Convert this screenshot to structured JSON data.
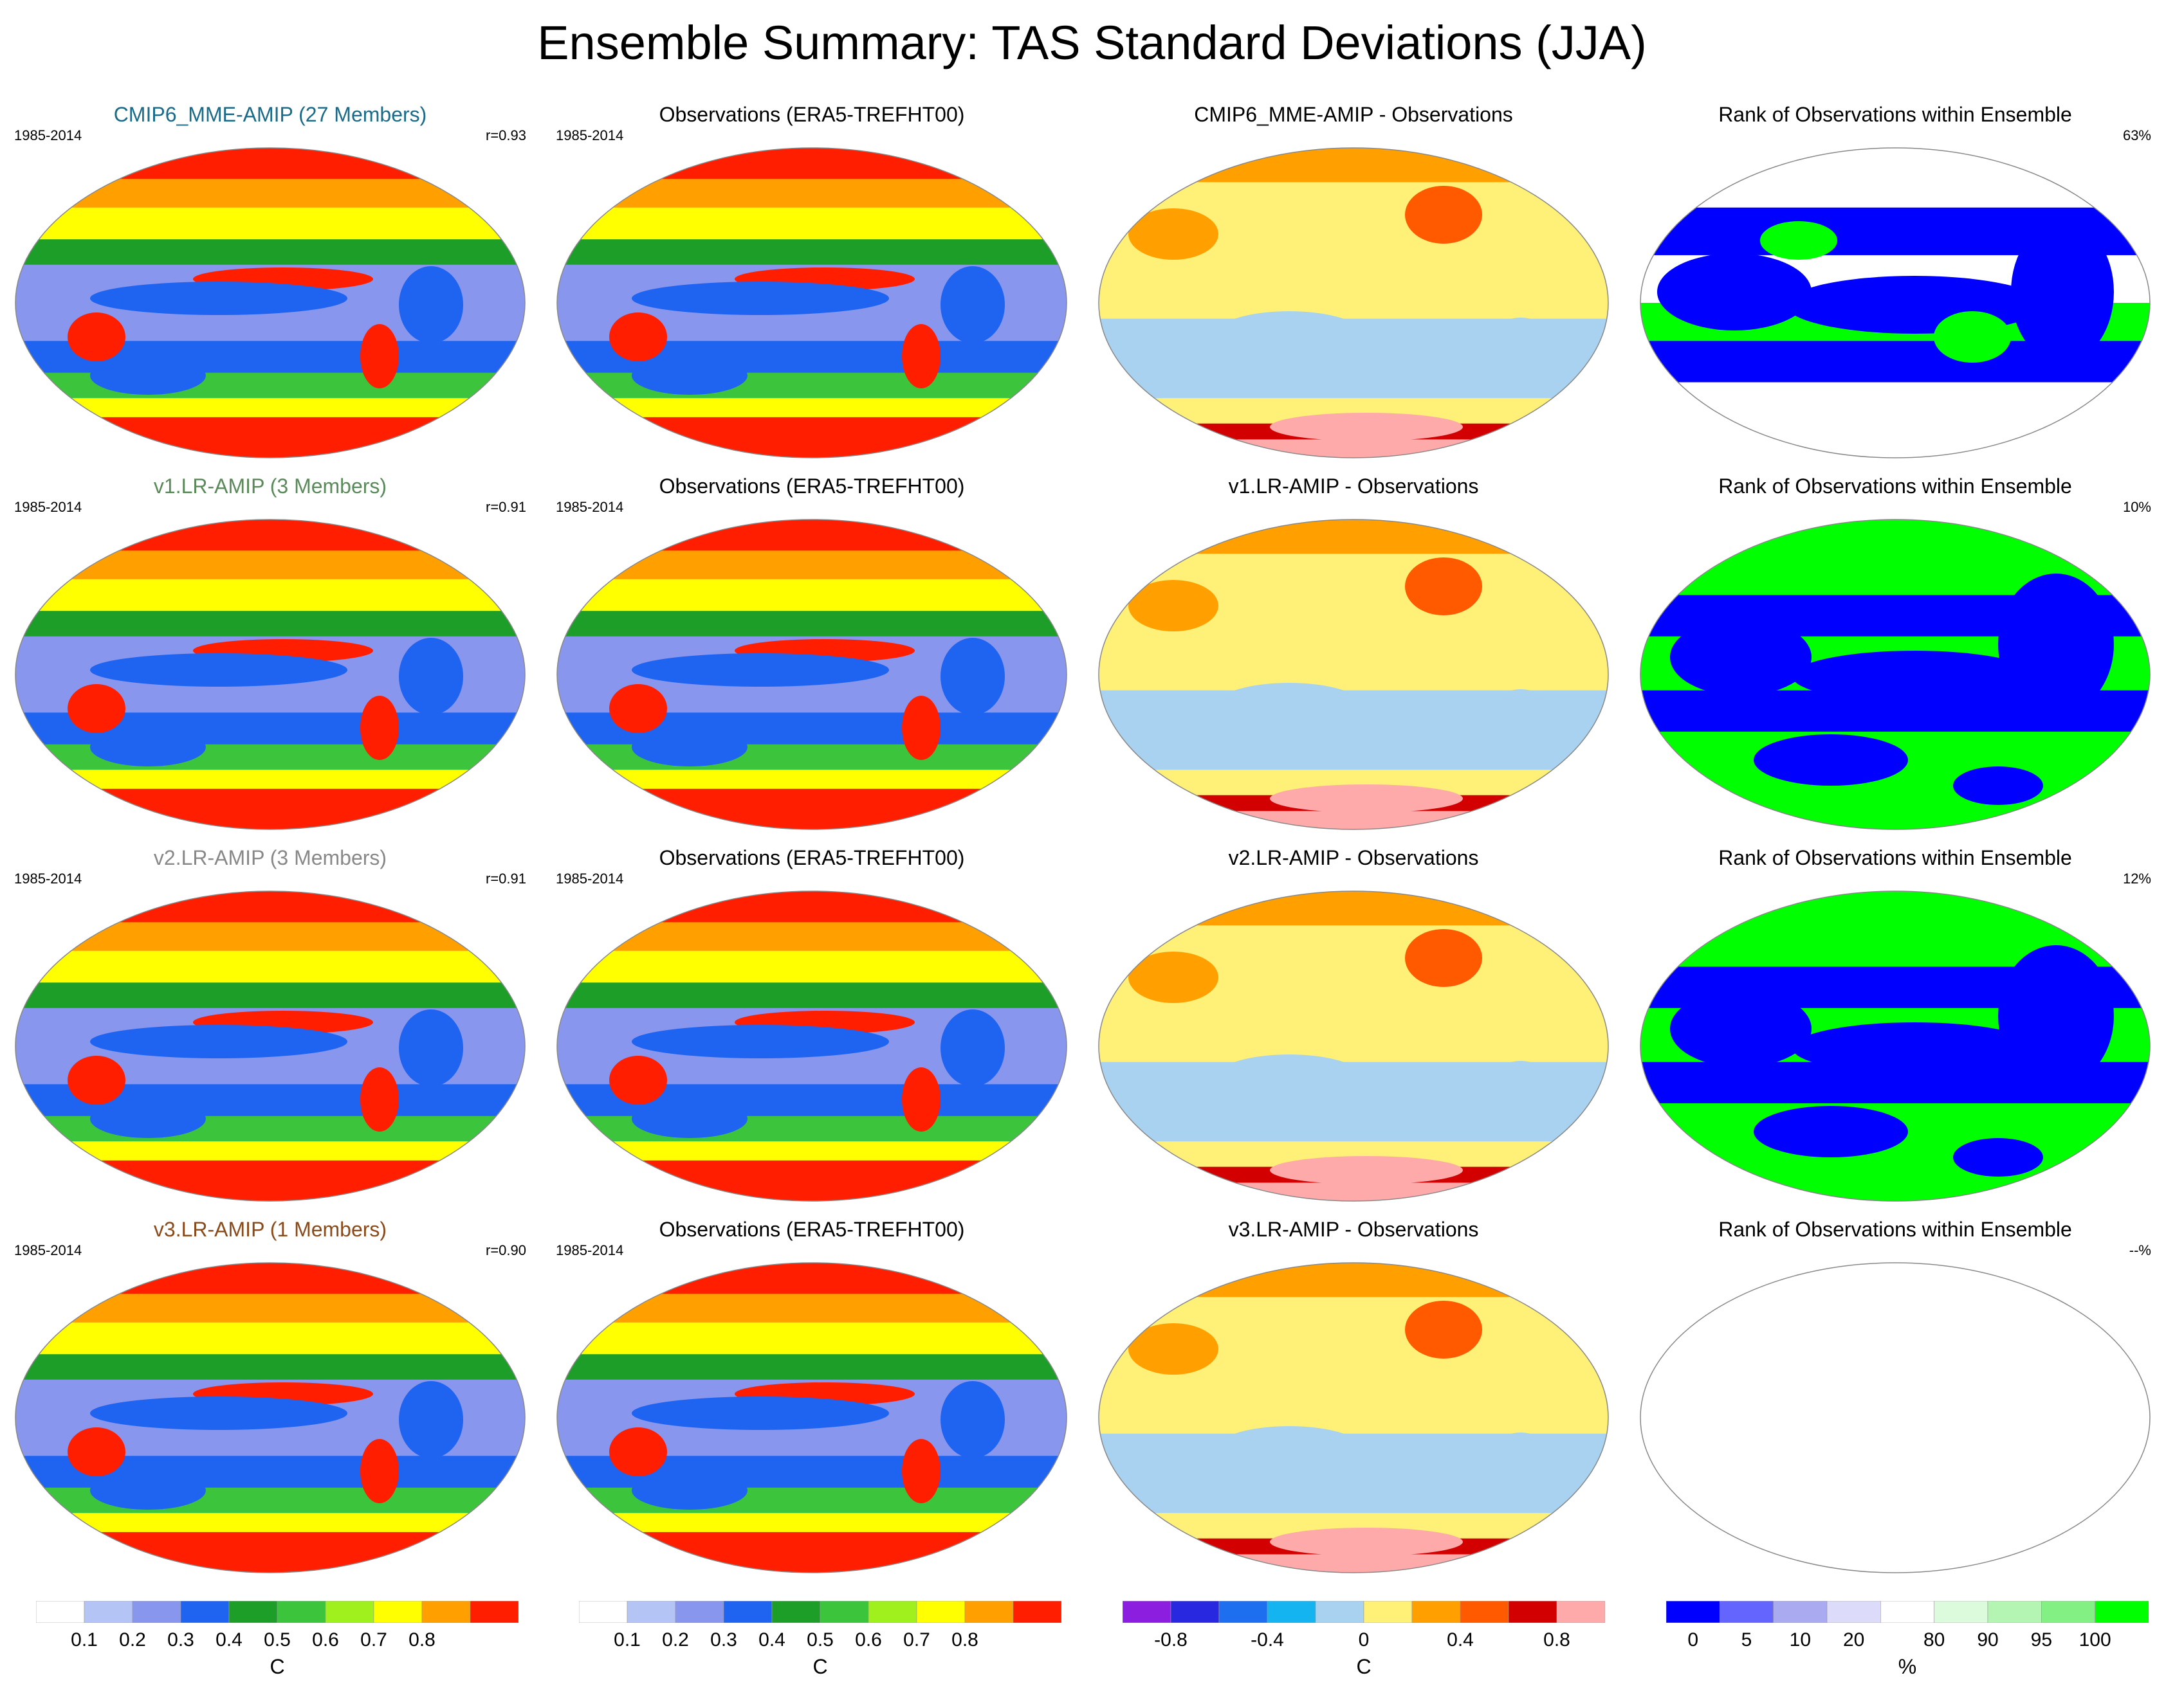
{
  "title": "Ensemble Summary: TAS Standard Deviations (JJA)",
  "colors": {
    "sd": [
      "#ffffff",
      "#b4c4f4",
      "#8896ee",
      "#1e64f0",
      "#1c9e28",
      "#3cc43c",
      "#a0f01e",
      "#ffff00",
      "#ffa000",
      "#ff1e00"
    ],
    "diff": [
      "#8c1ee0",
      "#2828e0",
      "#1e6ef0",
      "#14b4f0",
      "#a8d2f0",
      "#fff078",
      "#ffa000",
      "#ff5a00",
      "#d20000",
      "#ffaaaa"
    ],
    "rank": [
      "#0000ff",
      "#6464ff",
      "#aaaaf0",
      "#dcdcfa",
      "#ffffff",
      "#dcfadc",
      "#b4f5b4",
      "#82f082",
      "#00ff00"
    ]
  },
  "panels": [
    {
      "title": "CMIP6_MME-AMIP (27 Members)",
      "years": "1985-2014",
      "corr": "r=0.93",
      "title_color": "#1a6a8a",
      "kind": "sd"
    },
    {
      "title": "Observations (ERA5-TREFHT00)",
      "years": "1985-2014",
      "corr": "",
      "title_color": "#000000",
      "kind": "sd"
    },
    {
      "title": "CMIP6_MME-AMIP - Observations",
      "years": "",
      "corr": "",
      "title_color": "#000000",
      "kind": "diff"
    },
    {
      "title": "Rank of Observations within Ensemble",
      "years": "",
      "corr": "63%",
      "title_color": "#000000",
      "kind": "rank_mixed"
    },
    {
      "title": "v1.LR-AMIP (3 Members)",
      "years": "1985-2014",
      "corr": "r=0.91",
      "title_color": "#5a8a5a",
      "kind": "sd"
    },
    {
      "title": "Observations (ERA5-TREFHT00)",
      "years": "1985-2014",
      "corr": "",
      "title_color": "#000000",
      "kind": "sd"
    },
    {
      "title": "v1.LR-AMIP - Observations",
      "years": "",
      "corr": "",
      "title_color": "#000000",
      "kind": "diff"
    },
    {
      "title": "Rank of Observations within Ensemble",
      "years": "",
      "corr": "10%",
      "title_color": "#000000",
      "kind": "rank_green"
    },
    {
      "title": "v2.LR-AMIP (3 Members)",
      "years": "1985-2014",
      "corr": "r=0.91",
      "title_color": "#888888",
      "kind": "sd"
    },
    {
      "title": "Observations (ERA5-TREFHT00)",
      "years": "1985-2014",
      "corr": "",
      "title_color": "#000000",
      "kind": "sd"
    },
    {
      "title": "v2.LR-AMIP - Observations",
      "years": "",
      "corr": "",
      "title_color": "#000000",
      "kind": "diff"
    },
    {
      "title": "Rank of Observations within Ensemble",
      "years": "",
      "corr": "12%",
      "title_color": "#000000",
      "kind": "rank_green"
    },
    {
      "title": "v3.LR-AMIP (1 Members)",
      "years": "1985-2014",
      "corr": "r=0.90",
      "title_color": "#8a4a1a",
      "kind": "sd"
    },
    {
      "title": "Observations (ERA5-TREFHT00)",
      "years": "1985-2014",
      "corr": "",
      "title_color": "#000000",
      "kind": "sd"
    },
    {
      "title": "v3.LR-AMIP - Observations",
      "years": "",
      "corr": "",
      "title_color": "#000000",
      "kind": "diff"
    },
    {
      "title": "Rank of Observations within Ensemble",
      "years": "",
      "corr": "--%",
      "title_color": "#000000",
      "kind": "empty"
    }
  ],
  "chart_data": {
    "type": "heatmap",
    "layout": "4 rows x 4 columns of global maps plus 4 colorbars",
    "colorbars": [
      {
        "palette": "sd",
        "unit": "C",
        "ticks": [
          "0.1",
          "0.2",
          "0.3",
          "0.4",
          "0.5",
          "0.6",
          "0.7",
          "0.8"
        ]
      },
      {
        "palette": "sd",
        "unit": "C",
        "ticks": [
          "0.1",
          "0.2",
          "0.3",
          "0.4",
          "0.5",
          "0.6",
          "0.7",
          "0.8"
        ]
      },
      {
        "palette": "diff",
        "unit": "C",
        "ticks": [
          "-0.8",
          "-0.4",
          "0",
          "0.4",
          "0.8"
        ]
      },
      {
        "palette": "rank",
        "unit": "%",
        "ticks": [
          "0",
          "5",
          "10",
          "20",
          "80",
          "90",
          "95",
          "100"
        ]
      }
    ]
  }
}
